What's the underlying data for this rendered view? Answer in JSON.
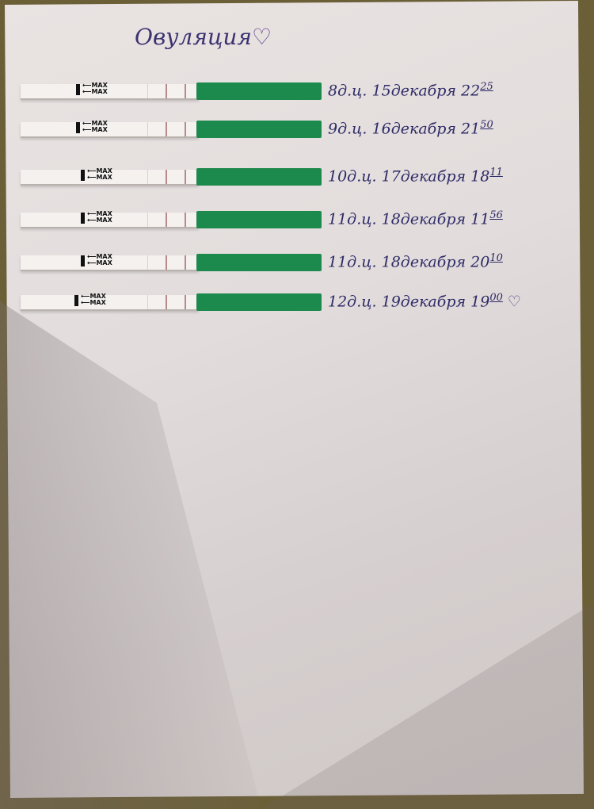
{
  "title": "Овуляция",
  "title_icon": "heart-icon",
  "strip_label": "MAX",
  "colors": {
    "strip_green": "#1d8a4d",
    "ink": "#2d2a66"
  },
  "entries": [
    {
      "cycle_day": "8д.ц.",
      "date": "15декабря",
      "hour": "22",
      "minute": "25"
    },
    {
      "cycle_day": "9д.ц.",
      "date": "16декабря",
      "hour": "21",
      "minute": "50"
    },
    {
      "cycle_day": "10д.ц.",
      "date": "17декабря",
      "hour": "18",
      "minute": "11"
    },
    {
      "cycle_day": "11д.ц.",
      "date": "18декабря",
      "hour": "11",
      "minute": "56"
    },
    {
      "cycle_day": "11д.ц.",
      "date": "18декабря",
      "hour": "20",
      "minute": "10"
    },
    {
      "cycle_day": "12д.ц.",
      "date": "19декабря",
      "hour": "19",
      "minute": "00",
      "mark": "heart-icon"
    }
  ]
}
